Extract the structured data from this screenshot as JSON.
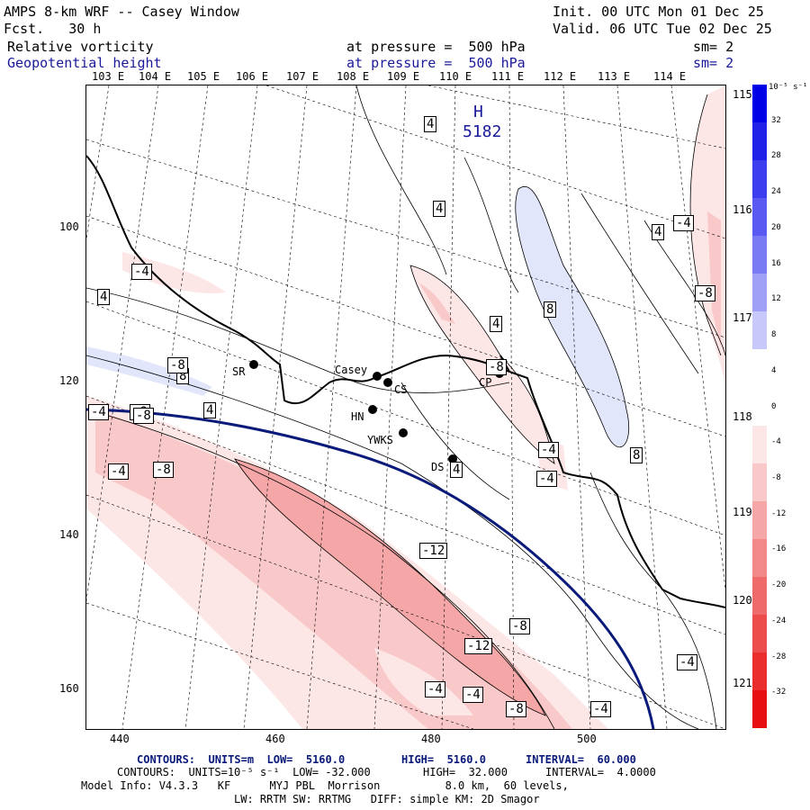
{
  "header": {
    "title": "AMPS 8-km WRF -- Casey Window",
    "fcst": "Fcst.   30 h",
    "init": "Init. 00 UTC Mon 01 Dec 25",
    "valid": "Valid. 06 UTC Tue 02 Dec 25",
    "field1": "Relative vorticity",
    "field1_level": "at pressure =  500 hPa",
    "field1_sm": "sm= 2",
    "field2": "Geopotential height",
    "field2_level": "at pressure =  500 hPa",
    "field2_sm": "sm= 2"
  },
  "longitude_labels_top": [
    "103 E",
    "104 E",
    "105 E",
    "106 E",
    "107 E",
    "108 E",
    "109 E",
    "110 E",
    "111 E",
    "112 E",
    "113 E",
    "114 E"
  ],
  "longitude_labels_right": [
    "115 E",
    "116 E",
    "117 E",
    "118 E",
    "119 E",
    "120 E",
    "121 E"
  ],
  "x_ticks": [
    "440",
    "460",
    "480",
    "500"
  ],
  "y_ticks": [
    "100",
    "120",
    "140",
    "160"
  ],
  "high_label": {
    "letter": "H",
    "value": "5182"
  },
  "contour_labels": [
    "4",
    "4",
    "4",
    "4",
    "4",
    "8",
    "8",
    "8",
    "4",
    "4",
    "-4",
    "-4",
    "-4",
    "-8",
    "-8",
    "-12",
    "-12",
    "-8",
    "-8",
    "-4",
    "-4",
    "-4",
    "-4",
    "-4",
    "-8",
    "-4",
    "-4",
    "-8",
    "-8",
    "-8"
  ],
  "stations": [
    {
      "name": "SR"
    },
    {
      "name": "Casey"
    },
    {
      "name": "CS"
    },
    {
      "name": "HN"
    },
    {
      "name": "YWKS"
    },
    {
      "name": "DS"
    },
    {
      "name": "CP"
    }
  ],
  "colorbar": {
    "unit": "10⁻⁵ s⁻¹",
    "labels": [
      "32",
      "28",
      "24",
      "20",
      "16",
      "12",
      "8",
      "4",
      "0",
      "-4",
      "-8",
      "-12",
      "-16",
      "-20",
      "-24",
      "-28",
      "-32"
    ],
    "colors": [
      "#0000e6",
      "#2020e8",
      "#3d3df0",
      "#5a5af2",
      "#7a7af4",
      "#a0a0f7",
      "#c8c8fa",
      "#ffffff",
      "#ffffff",
      "#fde6e6",
      "#f9c8c8",
      "#f5a7a7",
      "#f28888",
      "#ef6a6a",
      "#ec4c4c",
      "#ea2e2e",
      "#e61010"
    ]
  },
  "footer": {
    "line1_a": "CONTOURS:  UNITS=m  LOW=  5160.0",
    "line1_b": "HIGH=  5160.0",
    "line1_c": "INTERVAL=  60.000",
    "line2_a": "CONTOURS:  UNITS=10⁻⁵ s⁻¹  LOW= -32.000",
    "line2_b": "HIGH=  32.000",
    "line2_c": "INTERVAL=  4.0000",
    "line3": "Model Info: V4.3.3   KF      MYJ PBL  Morrison          8.0 km,  60 levels,",
    "line4": "LW: RRTM SW: RRTMG   DIFF: simple KM: 2D Smagor"
  }
}
